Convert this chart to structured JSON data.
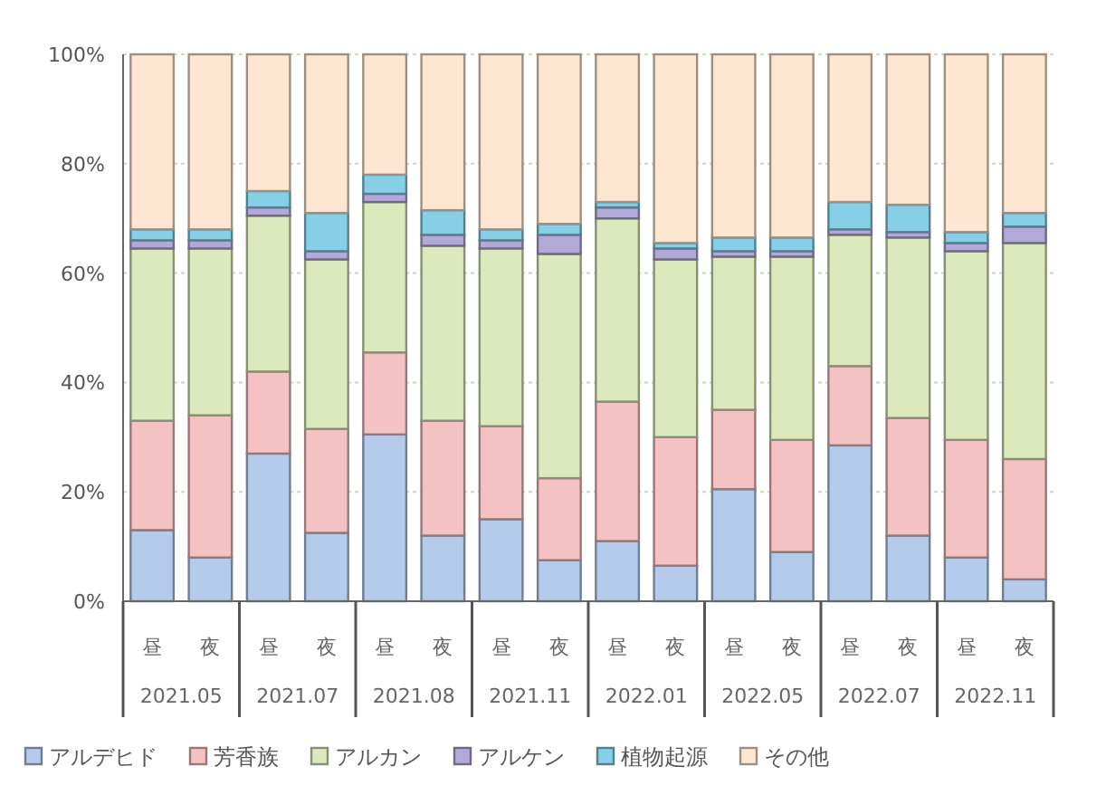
{
  "chart_data": {
    "type": "bar",
    "stacked": true,
    "categories": [
      "昼",
      "夜",
      "昼",
      "夜",
      "昼",
      "夜",
      "昼",
      "夜",
      "昼",
      "夜",
      "昼",
      "夜",
      "昼",
      "夜",
      "昼",
      "夜"
    ],
    "annotations": [
      "2021.05",
      "2021.07",
      "2021.08",
      "2021.11",
      "2022.01",
      "2022.05",
      "2022.07",
      "2022.11"
    ],
    "series": [
      {
        "name": "アルデヒド",
        "color": "#b4cbeb",
        "values": [
          13,
          8,
          27,
          12.5,
          30.5,
          12,
          15,
          7.5,
          11,
          6.5,
          20.5,
          9,
          28.5,
          12,
          8,
          4
        ]
      },
      {
        "name": "芳香族",
        "color": "#f4c2c2",
        "values": [
          20,
          26,
          15,
          19,
          15,
          21,
          17,
          15,
          25.5,
          23.5,
          14.5,
          20.5,
          14.5,
          21.5,
          21.5,
          22
        ]
      },
      {
        "name": "アルカン",
        "color": "#dbe9bd",
        "values": [
          31.5,
          30.5,
          28.5,
          31,
          27.5,
          32,
          32.5,
          41,
          33.5,
          32.5,
          28,
          33.5,
          24,
          33,
          34.5,
          39.5
        ]
      },
      {
        "name": "アルケン",
        "color": "#b3a9d9",
        "values": [
          1.5,
          1.5,
          1.5,
          1.5,
          1.5,
          2,
          1.5,
          3.5,
          2,
          2,
          1,
          1,
          1,
          1,
          1.5,
          3
        ]
      },
      {
        "name": "植物起源",
        "color": "#86cfe6",
        "values": [
          2,
          2,
          3,
          7,
          3.5,
          4.5,
          2,
          2,
          1,
          1,
          2.5,
          2.5,
          5,
          5,
          2,
          2.5
        ]
      },
      {
        "name": "その他",
        "color": "#fde7d2",
        "values": [
          32,
          32,
          25,
          29,
          22,
          28.5,
          32,
          31,
          27,
          34.5,
          33.5,
          33.5,
          27,
          27.5,
          32.5,
          29
        ]
      }
    ],
    "ylim": [
      0,
      100
    ],
    "yticks": [
      {
        "value": 0,
        "label": "0%"
      },
      {
        "value": 20,
        "label": "20%"
      },
      {
        "value": 40,
        "label": "40%"
      },
      {
        "value": 60,
        "label": "60%"
      },
      {
        "value": 80,
        "label": "80%"
      },
      {
        "value": 100,
        "label": "100%"
      }
    ],
    "grid": "y",
    "legend": "bottom"
  }
}
